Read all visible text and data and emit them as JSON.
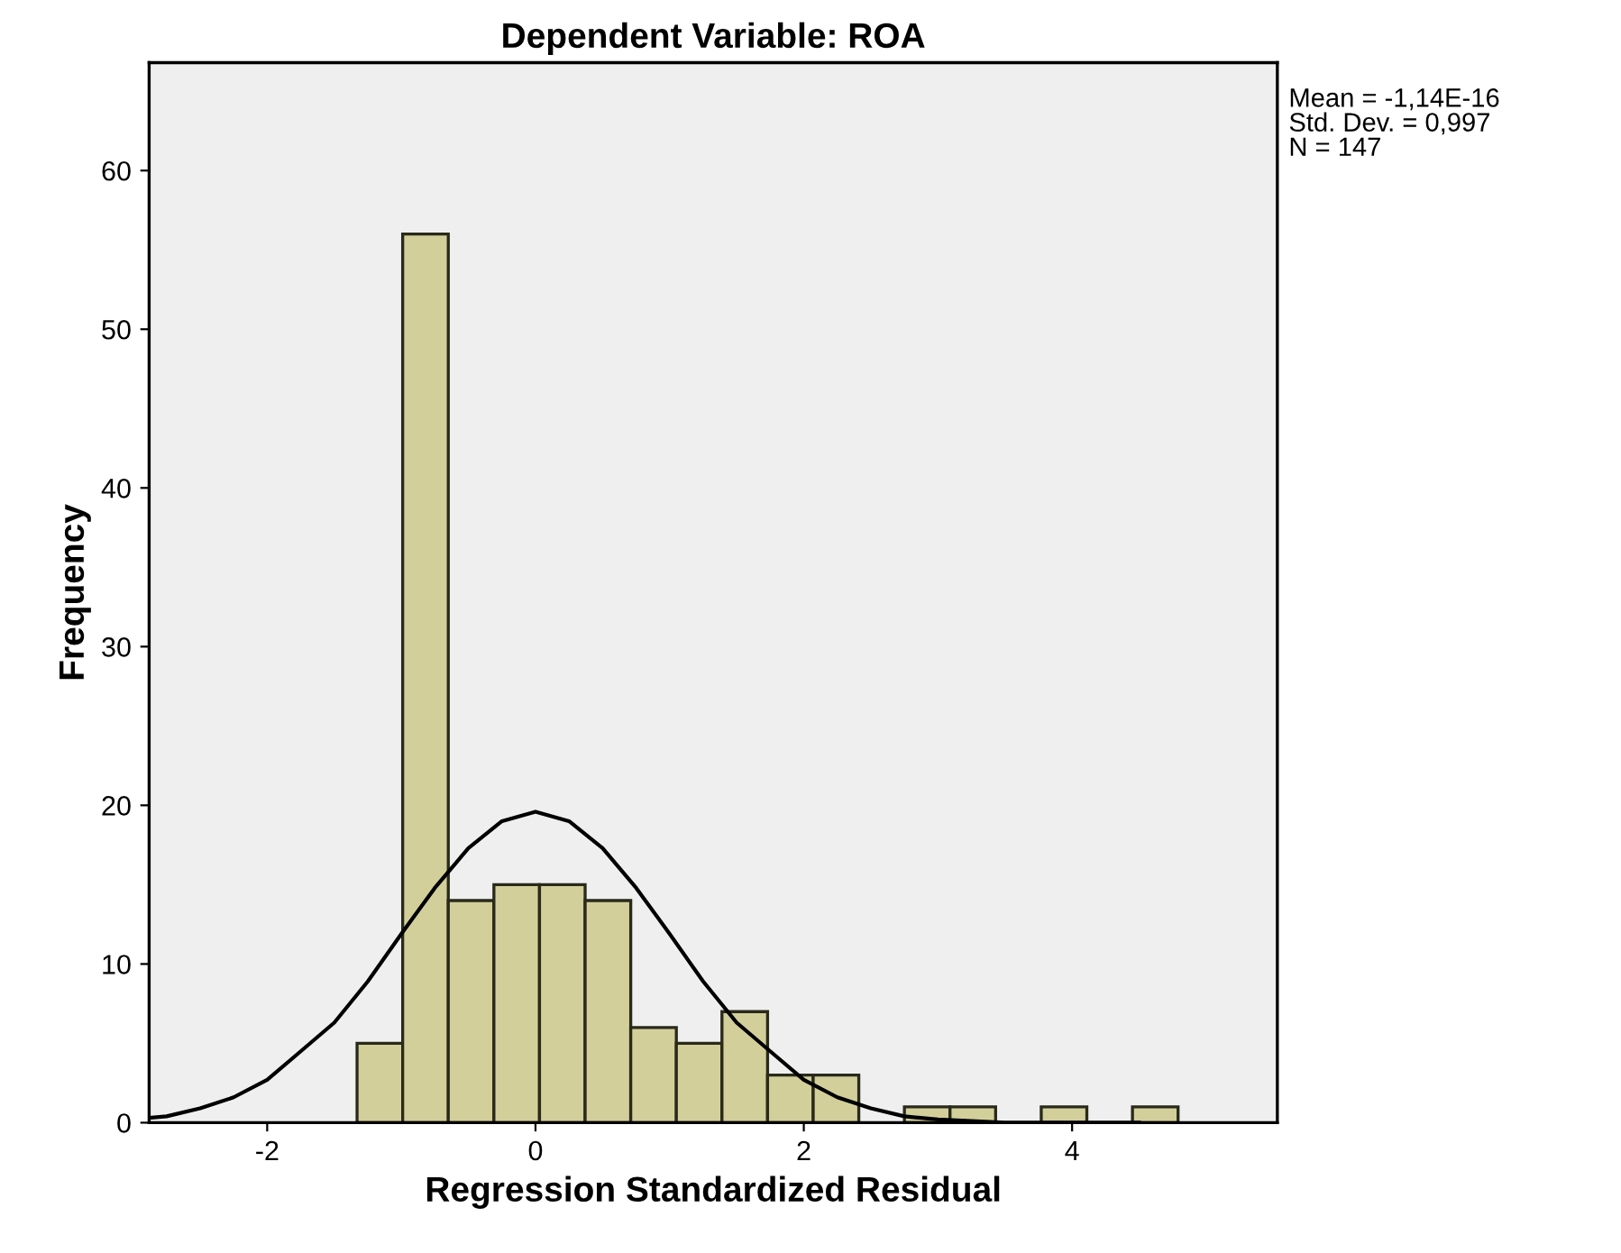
{
  "chart_data": {
    "type": "histogram",
    "title": "Dependent Variable: ROA",
    "xlabel": "Regression Standardized Residual",
    "ylabel": "Frequency",
    "bins": [
      -1.33,
      -0.99,
      -0.65,
      -0.31,
      0.03,
      0.37,
      0.71,
      1.05,
      1.39,
      1.73,
      2.07,
      2.41,
      2.75,
      3.09,
      3.43,
      3.77,
      4.11,
      4.45,
      4.79
    ],
    "series": [
      {
        "color": "#d3cf9b",
        "values": [
          5,
          56,
          14,
          15,
          15,
          14,
          6,
          5,
          7,
          3,
          3,
          0,
          1,
          1,
          0,
          1,
          0,
          1
        ]
      },
      {
        "type": "line",
        "color": "#000000",
        "x": [
          -2.88,
          -2.75,
          -2.5,
          -2.25,
          -2,
          -1.75,
          -1.5,
          -1.25,
          -1,
          -0.75,
          -0.5,
          -0.25,
          0,
          0.25,
          0.5,
          0.75,
          1,
          1.25,
          1.5,
          1.75,
          2,
          2.25,
          2.5,
          2.75,
          3,
          3.5,
          4.5
        ],
        "values": [
          0.3,
          0.4,
          0.9,
          1.6,
          2.7,
          4.5,
          6.3,
          8.9,
          11.9,
          14.8,
          17.3,
          19.0,
          19.6,
          19.0,
          17.3,
          14.8,
          11.9,
          8.9,
          6.3,
          4.5,
          2.7,
          1.6,
          0.9,
          0.4,
          0.2,
          0,
          0
        ]
      }
    ],
    "xlim": [
      -2.88,
      5.53
    ],
    "ylim": [
      0,
      66.8
    ],
    "xticks": [
      -2,
      0,
      2,
      4
    ],
    "yticks": [
      0,
      10,
      20,
      30,
      40,
      50,
      60
    ],
    "grid": false,
    "legend": false,
    "annotations": [
      "Mean = -1,14E-16",
      "Std. Dev. = 0,997",
      "N = 147"
    ]
  }
}
